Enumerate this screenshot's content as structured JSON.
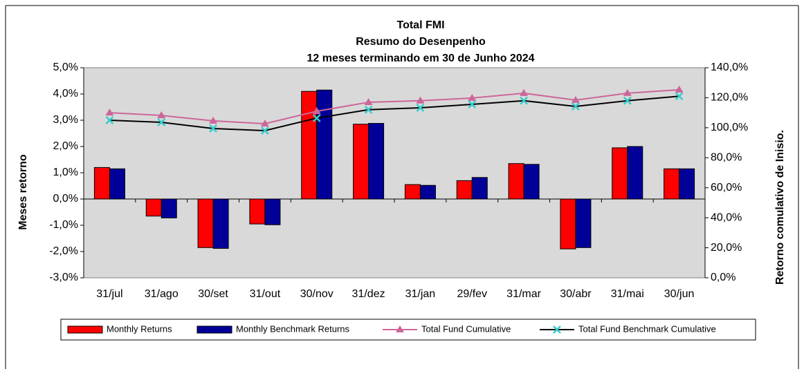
{
  "chart_data": {
    "type": "bar_line",
    "title": "Total FMI",
    "subtitle": "Resumo do Desenpenho",
    "subtitle2": "12 meses terminando em 30 de Junho 2024",
    "ylabel": "Meses retorno",
    "y2label": "Retorno comulativo de Inisio.",
    "categories": [
      "31/jul",
      "31/ago",
      "30/set",
      "31/out",
      "30/nov",
      "31/dez",
      "31/jan",
      "29/fev",
      "31/mar",
      "30/abr",
      "31/mai",
      "30/jun"
    ],
    "series": [
      {
        "name": "Monthly Returns",
        "kind": "bar",
        "color": "#ff0000",
        "values": [
          1.2,
          -0.65,
          -1.85,
          -0.95,
          4.1,
          2.85,
          0.55,
          0.7,
          1.35,
          -1.9,
          1.95,
          1.15
        ]
      },
      {
        "name": "Monthly Benchmark Returns",
        "kind": "bar",
        "color": "#000099",
        "values": [
          1.15,
          -0.72,
          -1.88,
          -0.98,
          4.15,
          2.88,
          0.52,
          0.82,
          1.32,
          -1.85,
          2.0,
          1.15
        ]
      },
      {
        "name": "Total Fund Cumulative",
        "kind": "line",
        "axis": "y2",
        "color": "#cc6699",
        "marker": "triangle",
        "values": [
          110,
          108.2,
          104.6,
          102.7,
          111,
          117,
          118,
          119.8,
          123,
          118.4,
          123,
          125.3
        ]
      },
      {
        "name": "Total Fund Benchmark Cumulative",
        "kind": "line",
        "axis": "y2",
        "color": "#000000",
        "markerColor": "#33cccc",
        "marker": "x",
        "values": [
          105,
          103.6,
          99.5,
          98.1,
          106.4,
          112,
          113.3,
          115.6,
          118,
          114.2,
          118,
          121
        ]
      }
    ],
    "ylim": [
      -3,
      5
    ],
    "yticks": [
      {
        "value": -3,
        "label": "-3,0%"
      },
      {
        "value": -2,
        "label": "-2,0%"
      },
      {
        "value": -1,
        "label": "-1,0%"
      },
      {
        "value": 0,
        "label": "0,0%"
      },
      {
        "value": 1,
        "label": "1,0%"
      },
      {
        "value": 2,
        "label": "2,0%"
      },
      {
        "value": 3,
        "label": "3,0%"
      },
      {
        "value": 4,
        "label": "4,0%"
      },
      {
        "value": 5,
        "label": "5,0%"
      }
    ],
    "y2lim": [
      0,
      140
    ],
    "y2ticks": [
      {
        "value": 0,
        "label": "0,0%"
      },
      {
        "value": 20,
        "label": "20,0%"
      },
      {
        "value": 40,
        "label": "40,0%"
      },
      {
        "value": 60,
        "label": "60,0%"
      },
      {
        "value": 80,
        "label": "80,0%"
      },
      {
        "value": 100,
        "label": "100,0%"
      },
      {
        "value": 120,
        "label": "120,0%"
      },
      {
        "value": 140,
        "label": "140,0%"
      }
    ],
    "legend": "bottom",
    "plotBackground": "#d9d9d9"
  }
}
